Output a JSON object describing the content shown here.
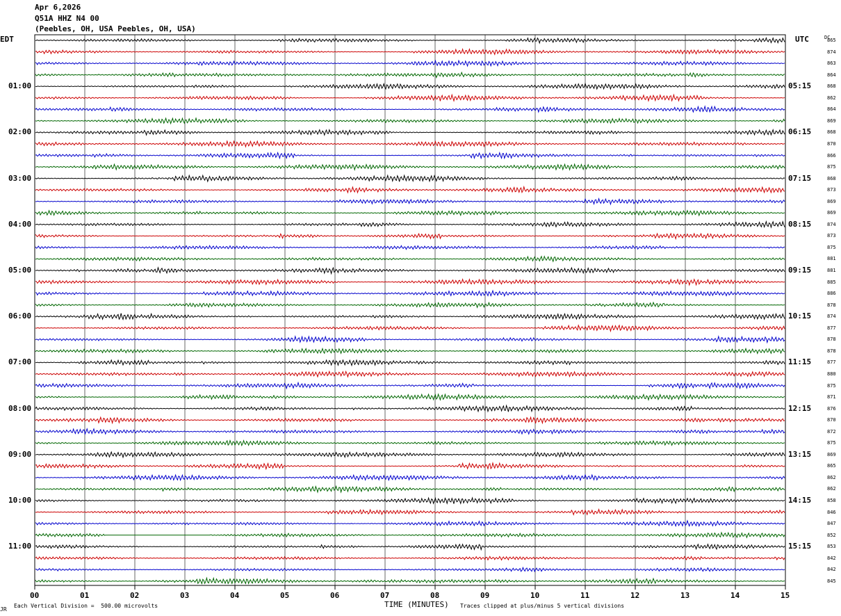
{
  "header": {
    "date": "Apr 6,2026",
    "channel": "Q51A HHZ N4 00",
    "location": "(Peebles, OH, USA Peebles, OH, USA)"
  },
  "labels": {
    "left_tz": "EDT",
    "right_tz": "UTC",
    "dc_header": "DC"
  },
  "footer": {
    "scale": "Each Vertical Division =  500.00 microvolts",
    "xaxis_title": "TIME (MINUTES)",
    "clip_note": "Traces clipped at plus/minus 5 vertical divisions",
    "corner_mark": "JR"
  },
  "chart_data": {
    "type": "line",
    "x_ticks": [
      "00",
      "01",
      "02",
      "03",
      "04",
      "05",
      "06",
      "07",
      "08",
      "09",
      "10",
      "11",
      "12",
      "13",
      "14",
      "15"
    ],
    "xlim": [
      0,
      15
    ],
    "traces_per_hour": 4,
    "trace_colors": [
      "#000000",
      "#cc0000",
      "#0000cc",
      "#006600"
    ],
    "left_hour_labels": [
      "01:00",
      "02:00",
      "03:00",
      "04:00",
      "05:00",
      "06:00",
      "07:00",
      "08:00",
      "09:00",
      "10:00",
      "11:00"
    ],
    "right_hour_labels": [
      "05:15",
      "06:15",
      "07:15",
      "08:15",
      "09:15",
      "10:15",
      "11:15",
      "12:15",
      "13:15",
      "14:15",
      "15:15"
    ],
    "dc_offsets": [
      "865",
      "874",
      "863",
      "864",
      "868",
      "862",
      "864",
      "869",
      "868",
      "870",
      "866",
      "875",
      "868",
      "873",
      "869",
      "869",
      "874",
      "873",
      "875",
      "881",
      "881",
      "885",
      "886",
      "878",
      "874",
      "877",
      "878",
      "878",
      "877",
      "880",
      "875",
      "871",
      "876",
      "870",
      "872",
      "875",
      "869",
      "865",
      "862",
      "862",
      "858",
      "846",
      "847",
      "852",
      "853",
      "842",
      "842",
      "845"
    ],
    "grid": true,
    "gap": {
      "trace_index": 43,
      "start_minute": 1.4,
      "end_minute": 3.5
    }
  }
}
